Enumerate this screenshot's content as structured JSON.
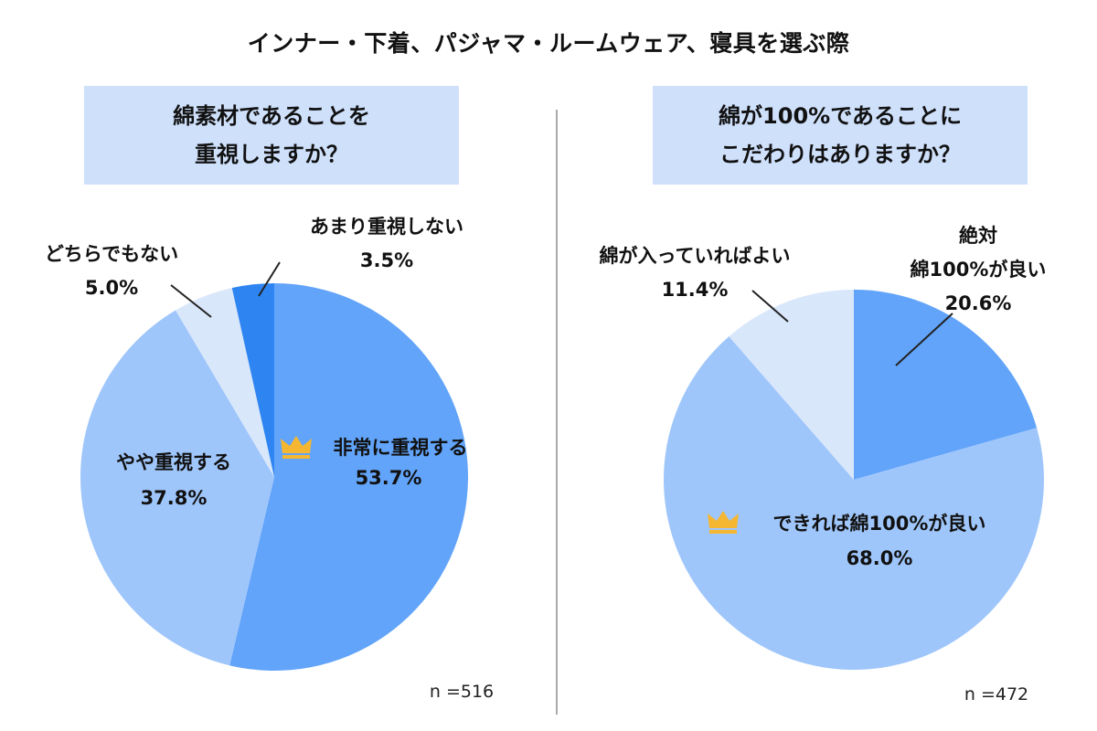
{
  "title": "インナー・下着、パジャマ・ルームウェア、寝具を選ぶ際",
  "colors": {
    "question_bg": "#cfe0fb",
    "crown": "#f5b731",
    "divider": "#a9a9a9"
  },
  "chart_data": [
    {
      "type": "pie",
      "question": [
        "綿素材であることを",
        "重視しますか？"
      ],
      "sample": "n =516",
      "slices": [
        {
          "label": "非常に重視する",
          "value": 53.7,
          "value_text": "53.7%",
          "color": "#62a4f9",
          "crown": true
        },
        {
          "label": "やや重視する",
          "value": 37.8,
          "value_text": "37.8%",
          "color": "#9fc6fb",
          "crown": false
        },
        {
          "label": "どちらでもない",
          "value": 5.0,
          "value_text": "5.0%",
          "color": "#d9e7fb",
          "crown": false
        },
        {
          "label": "あまり重視しない",
          "value": 3.5,
          "value_text": "3.5%",
          "color": "#2e85f2",
          "crown": false
        }
      ]
    },
    {
      "type": "pie",
      "question": [
        "綿が100%であることに",
        "こだわりはありますか？"
      ],
      "sample": "n =472",
      "slices": [
        {
          "label": "絶対\n綿100%が良い",
          "value": 20.6,
          "value_text": "20.6%",
          "color": "#62a4f9",
          "crown": false
        },
        {
          "label": "できれば綿100%が良い",
          "value": 68.0,
          "value_text": "68.0%",
          "color": "#9fc6fb",
          "crown": true
        },
        {
          "label": "綿が入っていればよい",
          "value": 11.4,
          "value_text": "11.4%",
          "color": "#d9e7fb",
          "crown": false
        }
      ]
    }
  ]
}
